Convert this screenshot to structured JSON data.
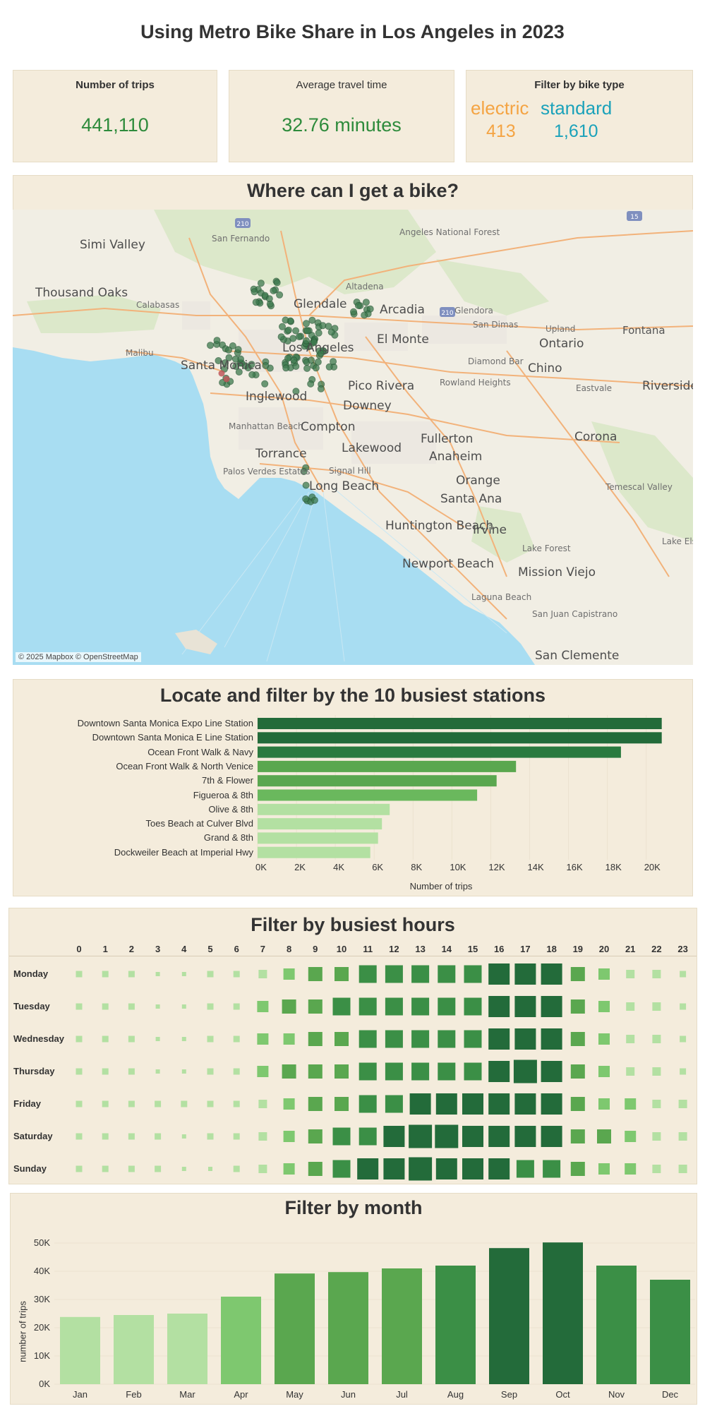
{
  "header": {
    "title": "Using Metro Bike Share in Los Angeles in 2023"
  },
  "kpis": {
    "trips_label": "Number of trips",
    "trips_value": "441,110",
    "avg_label": "Average travel time",
    "avg_value": "32.76 minutes",
    "filter_label": "Filter by bike type",
    "electric_label": "electric",
    "electric_value": "413",
    "standard_label": "standard",
    "standard_value": "1,610",
    "electric_color": "#f4a443",
    "standard_color": "#1ba2ba"
  },
  "map": {
    "title": "Where can I get a bike?",
    "attribution": "© 2025 Mapbox © OpenStreetMap",
    "labels": [
      "Simi Valley",
      "San Fernando",
      "Angeles National Forest",
      "Thousand Oaks",
      "Calabasas",
      "Altadena",
      "Glendale",
      "Arcadia",
      "Glendora",
      "San Dimas",
      "Upland",
      "Fontana",
      "Ontario",
      "Malibu",
      "Santa Monica",
      "Los Angeles",
      "El Monte",
      "Diamond Bar",
      "Chino",
      "Eastvale",
      "Riverside",
      "Pico Rivera",
      "Rowland Heights",
      "Inglewood",
      "Downey",
      "Manhattan Beach",
      "Compton",
      "Fullerton",
      "Corona",
      "Torrance",
      "Lakewood",
      "Anaheim",
      "Palos Verdes Estates",
      "Signal Hill",
      "Long Beach",
      "Orange",
      "Santa Ana",
      "Temescal Valley",
      "Huntington Beach",
      "Irvine",
      "Lake Forest",
      "Lake Elsinore",
      "Newport Beach",
      "Mission Viejo",
      "Laguna Beach",
      "San Juan Capistrano",
      "San Clemente"
    ],
    "highway_shields": [
      "210",
      "15",
      "210"
    ]
  },
  "stations": {
    "title": "Locate and filter by the 10 busiest stations",
    "xlabel": "Number of trips",
    "ticks": [
      "0K",
      "2K",
      "4K",
      "6K",
      "8K",
      "10K",
      "12K",
      "14K",
      "16K",
      "18K",
      "20K"
    ]
  },
  "hours": {
    "title": "Filter by busiest hours",
    "days": [
      "Monday",
      "Tuesday",
      "Wednesday",
      "Thursday",
      "Friday",
      "Saturday",
      "Sunday"
    ],
    "hour_labels": [
      "0",
      "1",
      "2",
      "3",
      "4",
      "5",
      "6",
      "7",
      "8",
      "9",
      "10",
      "11",
      "12",
      "13",
      "14",
      "15",
      "16",
      "17",
      "18",
      "19",
      "20",
      "21",
      "22",
      "23"
    ],
    "levels": [
      [
        1,
        1,
        1,
        0,
        0,
        1,
        1,
        2,
        3,
        4,
        4,
        5,
        5,
        5,
        5,
        5,
        6,
        6,
        6,
        4,
        3,
        2,
        2,
        1
      ],
      [
        1,
        1,
        1,
        0,
        0,
        1,
        1,
        3,
        4,
        4,
        5,
        5,
        5,
        5,
        5,
        5,
        6,
        6,
        6,
        4,
        3,
        2,
        2,
        1
      ],
      [
        1,
        1,
        1,
        0,
        0,
        1,
        1,
        3,
        3,
        4,
        4,
        5,
        5,
        5,
        5,
        5,
        6,
        6,
        6,
        4,
        3,
        2,
        2,
        1
      ],
      [
        1,
        1,
        1,
        0,
        0,
        1,
        1,
        3,
        4,
        4,
        4,
        5,
        5,
        5,
        5,
        5,
        6,
        7,
        6,
        4,
        3,
        2,
        2,
        1
      ],
      [
        1,
        1,
        1,
        1,
        1,
        1,
        1,
        2,
        3,
        4,
        4,
        5,
        5,
        6,
        6,
        6,
        6,
        6,
        6,
        4,
        3,
        3,
        2,
        2
      ],
      [
        1,
        1,
        1,
        1,
        0,
        1,
        1,
        2,
        3,
        4,
        5,
        5,
        6,
        7,
        7,
        6,
        6,
        6,
        6,
        4,
        4,
        3,
        2,
        2
      ],
      [
        1,
        1,
        1,
        1,
        0,
        0,
        1,
        2,
        3,
        4,
        5,
        6,
        6,
        7,
        6,
        6,
        6,
        5,
        5,
        4,
        3,
        3,
        2,
        2
      ]
    ]
  },
  "months": {
    "title": "Filter by month",
    "ylabel": "number of trips",
    "yticks": [
      "0K",
      "10K",
      "20K",
      "30K",
      "40K",
      "50K"
    ]
  },
  "chart_data": [
    {
      "type": "bar",
      "orientation": "horizontal",
      "title": "Locate and filter by the 10 busiest stations",
      "xlabel": "Number of trips",
      "xlim": [
        0,
        21500
      ],
      "categories": [
        "Downtown Santa Monica Expo Line Station",
        "Downtown Santa Monica E Line Station",
        "Ocean Front Walk & Navy",
        "Ocean Front Walk & North Venice",
        "7th & Flower",
        "Figueroa & 8th",
        "Olive & 8th",
        "Toes Beach at Culver Blvd",
        "Grand & 8th",
        "Dockweiler Beach at Imperial Hwy"
      ],
      "values": [
        20800,
        20800,
        18700,
        13300,
        12300,
        11300,
        6800,
        6400,
        6200,
        5800
      ],
      "colors": [
        "#236b3a",
        "#236b3a",
        "#2a7a3f",
        "#5aa74f",
        "#5aa74f",
        "#6ab85d",
        "#b3e0a2",
        "#b3e0a2",
        "#b3e0a2",
        "#b3e0a2"
      ]
    },
    {
      "type": "heatmap",
      "title": "Filter by busiest hours",
      "x": [
        "0",
        "1",
        "2",
        "3",
        "4",
        "5",
        "6",
        "7",
        "8",
        "9",
        "10",
        "11",
        "12",
        "13",
        "14",
        "15",
        "16",
        "17",
        "18",
        "19",
        "20",
        "21",
        "22",
        "23"
      ],
      "y": [
        "Monday",
        "Tuesday",
        "Wednesday",
        "Thursday",
        "Friday",
        "Saturday",
        "Sunday"
      ],
      "scale": "relative intensity 0-7"
    },
    {
      "type": "bar",
      "title": "Filter by month",
      "ylabel": "number of trips",
      "ylim": [
        0,
        52000
      ],
      "categories": [
        "Jan",
        "Feb",
        "Mar",
        "Apr",
        "May",
        "Jun",
        "Jul",
        "Aug",
        "Sep",
        "Oct",
        "Nov",
        "Dec"
      ],
      "values": [
        23800,
        24500,
        25000,
        31000,
        39200,
        39700,
        41000,
        42000,
        48200,
        50200,
        42000,
        37000
      ],
      "colors": [
        "#b3e0a2",
        "#b3e0a2",
        "#b3e0a2",
        "#7ec86f",
        "#5aa74f",
        "#5aa74f",
        "#5aa74f",
        "#3b8f46",
        "#236b3a",
        "#236b3a",
        "#3b8f46",
        "#3b8f46"
      ]
    }
  ]
}
